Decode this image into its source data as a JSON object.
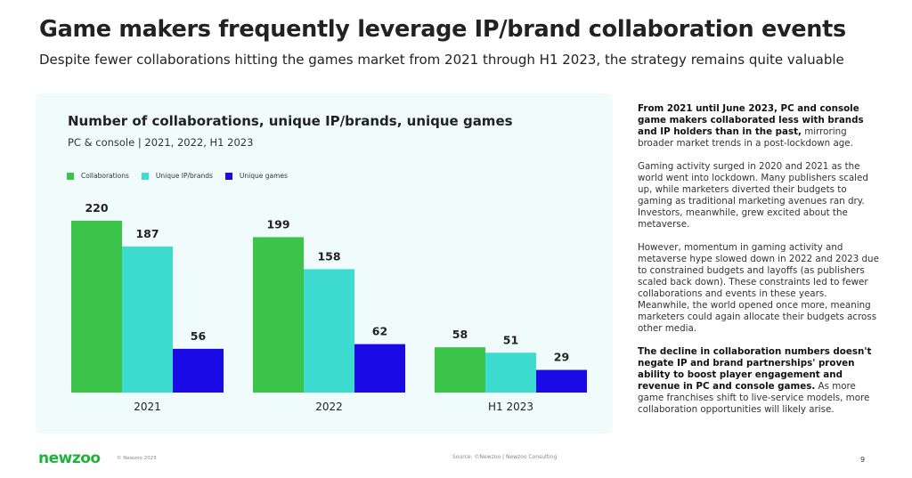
{
  "header": {
    "title": "Game makers frequently leverage IP/brand collaboration events",
    "subtitle": "Despite fewer collaborations hitting the games market from 2021 through H1 2023, the strategy remains quite valuable"
  },
  "chart_data": {
    "type": "bar",
    "title": "Number of collaborations, unique IP/brands, unique games",
    "subtitle": "PC & console | 2021, 2022, H1 2023",
    "categories": [
      "2021",
      "2022",
      "H1 2023"
    ],
    "series": [
      {
        "name": "Collaborations",
        "values": [
          220,
          199,
          58
        ],
        "color": "#3cc44a"
      },
      {
        "name": "Unique IP/brands",
        "values": [
          187,
          158,
          51
        ],
        "color": "#3ddbd0"
      },
      {
        "name": "Unique games",
        "values": [
          56,
          62,
          29
        ],
        "color": "#1a0ae6"
      }
    ],
    "ylim": [
      0,
      220
    ],
    "legend": "top-left",
    "grid": false
  },
  "sidebar": {
    "p1_bold": "From 2021 until June 2023, PC and console game makers collaborated less with brands and IP holders than in the past,",
    "p1_rest": " mirroring broader market trends in a post-lockdown age.",
    "p2": "Gaming activity surged in 2020 and 2021 as the world went into lockdown. Many publishers scaled up, while marketers diverted their budgets to gaming as traditional marketing avenues ran dry. Investors, meanwhile, grew excited about the metaverse.",
    "p3": "However, momentum in gaming activity and metaverse hype slowed down in 2022 and 2023 due to constrained budgets and layoffs (as publishers scaled back down). These constraints led to fewer collaborations and events in these years. Meanwhile, the world opened once more, meaning marketers could again allocate their budgets across other media.",
    "p4_bold": "The decline in collaboration numbers doesn't negate IP and brand partnerships' proven ability to boost player engagement and revenue in PC and console games.",
    "p4_rest": " As more game franchises shift to live-service models, more collaboration opportunities will likely arise."
  },
  "footer": {
    "logo": "newzoo",
    "copyright": "© Newzoo 2023",
    "source": "Source: ©Newzoo | Newzoo Consulting",
    "page": "9"
  }
}
